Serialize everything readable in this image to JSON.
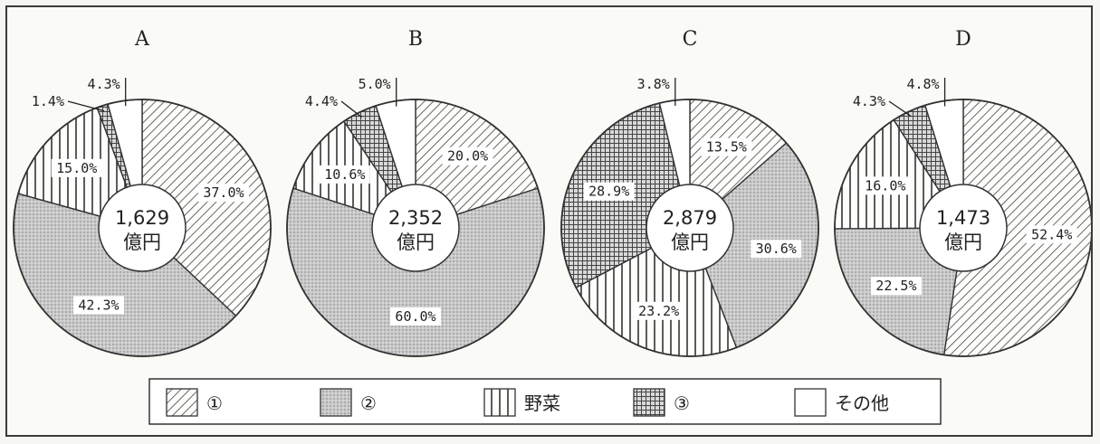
{
  "chart_data": {
    "type": "pie",
    "charts": [
      {
        "title": "A",
        "center": [
          "1,629",
          "億円"
        ],
        "slices": [
          {
            "category": "①",
            "value": 37.0,
            "label": "37.0%"
          },
          {
            "category": "②",
            "value": 42.3,
            "label": "42.3%"
          },
          {
            "category": "野菜",
            "value": 15.0,
            "label": "15.0%"
          },
          {
            "category": "③",
            "value": 1.4,
            "label": "1.4%"
          },
          {
            "category": "その他",
            "value": 4.3,
            "label": "4.3%"
          }
        ]
      },
      {
        "title": "B",
        "center": [
          "2,352",
          "億円"
        ],
        "slices": [
          {
            "category": "①",
            "value": 20.0,
            "label": "20.0%"
          },
          {
            "category": "②",
            "value": 60.0,
            "label": "60.0%"
          },
          {
            "category": "野菜",
            "value": 10.6,
            "label": "10.6%"
          },
          {
            "category": "③",
            "value": 4.4,
            "label": "4.4%"
          },
          {
            "category": "その他",
            "value": 5.0,
            "label": "5.0%"
          }
        ]
      },
      {
        "title": "C",
        "center": [
          "2,879",
          "億円"
        ],
        "slices": [
          {
            "category": "①",
            "value": 13.5,
            "label": "13.5%"
          },
          {
            "category": "②",
            "value": 30.6,
            "label": "30.6%"
          },
          {
            "category": "野菜",
            "value": 23.2,
            "label": "23.2%"
          },
          {
            "category": "③",
            "value": 28.9,
            "label": "28.9%"
          },
          {
            "category": "その他",
            "value": 3.8,
            "label": "3.8%"
          }
        ]
      },
      {
        "title": "D",
        "center": [
          "1,473",
          "億円"
        ],
        "slices": [
          {
            "category": "①",
            "value": 52.4,
            "label": "52.4%"
          },
          {
            "category": "②",
            "value": 22.5,
            "label": "22.5%"
          },
          {
            "category": "野菜",
            "value": 16.0,
            "label": "16.0%"
          },
          {
            "category": "③",
            "value": 4.3,
            "label": "4.3%"
          },
          {
            "category": "その他",
            "value": 4.8,
            "label": "4.8%"
          }
        ]
      }
    ],
    "legend": {
      "placement": "bottom",
      "items": [
        {
          "label": "①",
          "pattern": "diagonal-hatch"
        },
        {
          "label": "②",
          "pattern": "dotted-gray"
        },
        {
          "label": "野菜",
          "pattern": "vertical-lines"
        },
        {
          "label": "③",
          "pattern": "crosshatch"
        },
        {
          "label": "その他",
          "pattern": "white"
        }
      ]
    }
  }
}
